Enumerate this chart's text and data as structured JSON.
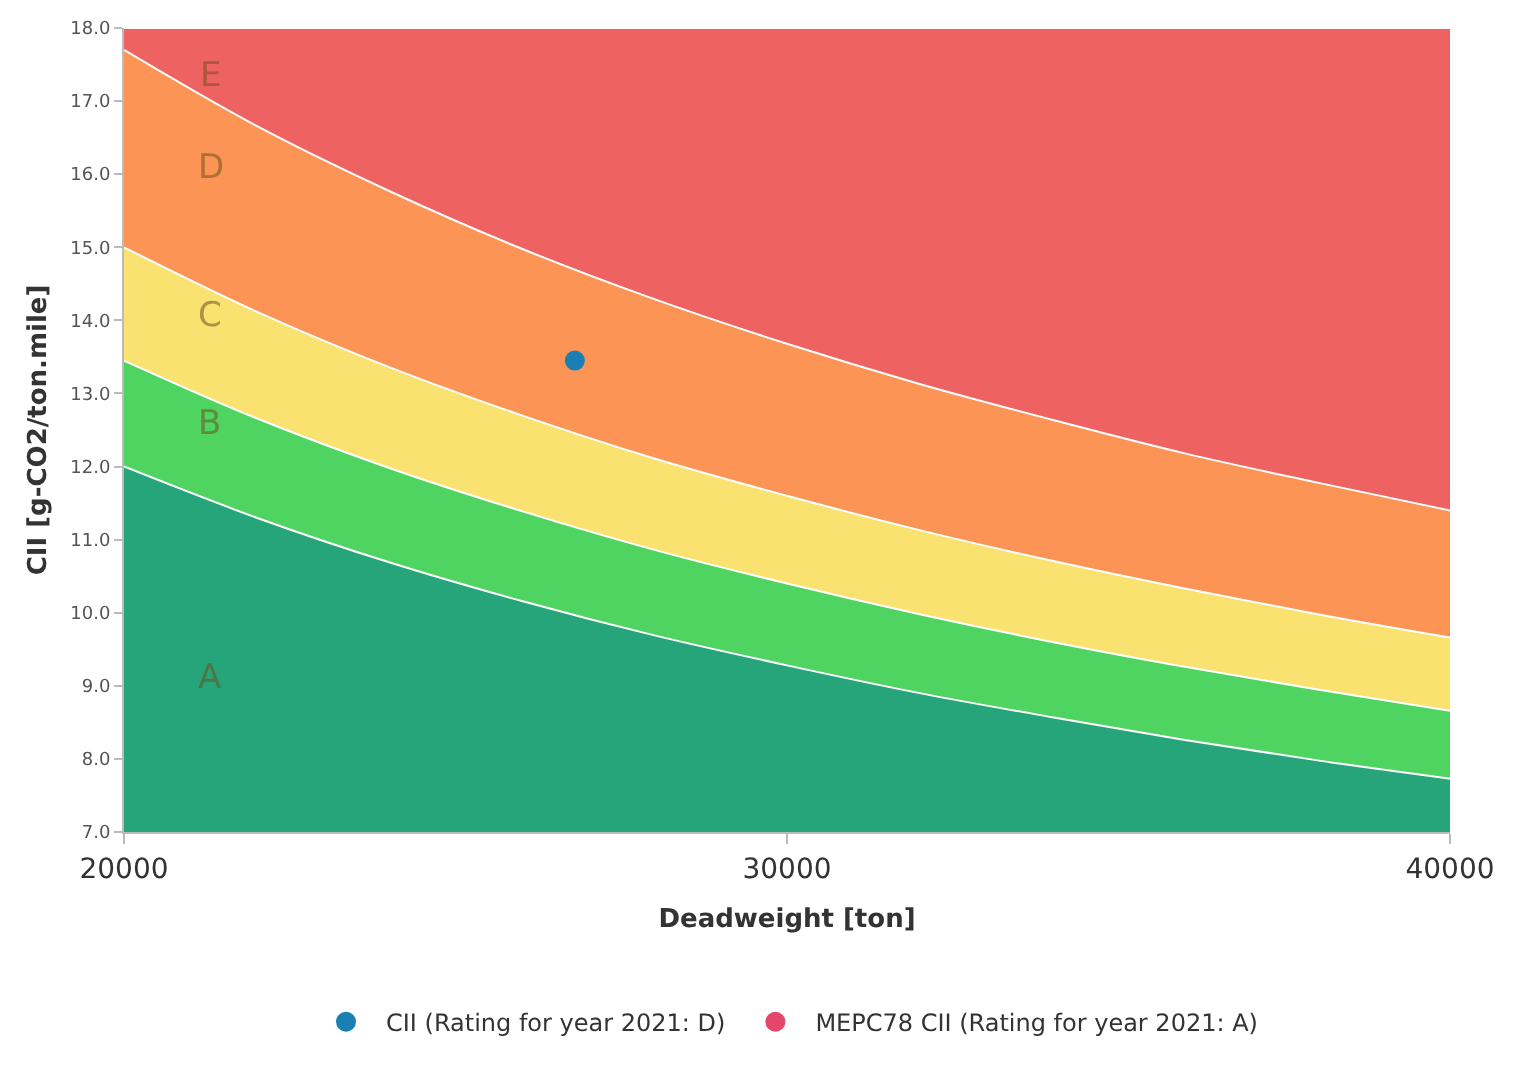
{
  "chart_data": {
    "type": "area",
    "xlabel": "Deadweight [ton]",
    "ylabel": "CII [g-CO2/ton.mile]",
    "x": [
      20000,
      22000,
      24000,
      26000,
      28000,
      30000,
      32000,
      34000,
      36000,
      38000,
      40000
    ],
    "series": [
      {
        "color": "#27a57a",
        "values": [
          12.0,
          11.3,
          10.69,
          10.16,
          9.69,
          9.28,
          8.9,
          8.57,
          8.26,
          7.98,
          7.73
        ]
      },
      {
        "color": "#4fd462",
        "values": [
          13.45,
          12.66,
          11.98,
          11.39,
          10.86,
          10.4,
          9.98,
          9.6,
          9.26,
          8.95,
          8.66
        ]
      },
      {
        "color": "#f9e270",
        "values": [
          15.0,
          14.12,
          13.36,
          12.7,
          12.11,
          11.6,
          11.13,
          10.71,
          10.33,
          9.98,
          9.66
        ]
      },
      {
        "color": "#fb9455",
        "values": [
          17.7,
          16.66,
          15.77,
          14.98,
          14.29,
          13.68,
          13.13,
          12.64,
          12.18,
          11.78,
          11.4
        ]
      },
      {
        "color": "#ef6262",
        "values": [
          18.0,
          18.0,
          18.0,
          18.0,
          18.0,
          18.0,
          18.0,
          18.0,
          18.0,
          18.0,
          18.0
        ]
      },
      {
        "type": "scatter",
        "name": "CII (Rating for year 2021: D)",
        "color": "#1a7fb5",
        "marker": "circle",
        "x": [
          26800
        ],
        "values": [
          13.45
        ]
      },
      {
        "type": "scatter",
        "name": "MEPC78 CII (Rating for year 2021: A)",
        "color": "#e5476a",
        "marker": "circle",
        "values": [
          null,
          null,
          null,
          null,
          null,
          null,
          null,
          null,
          null,
          null,
          null
        ]
      }
    ],
    "annotations": [
      "A",
      "B",
      "C",
      "D",
      "E"
    ],
    "xlim": [
      20000,
      40000
    ],
    "xticks": [
      20000,
      30000,
      40000
    ],
    "ylim": [
      7,
      18
    ],
    "yticks": [
      {
        "value": 7,
        "label": "7.0"
      },
      {
        "value": 8,
        "label": "8.0"
      },
      {
        "value": 9,
        "label": "9.0"
      },
      {
        "value": 10,
        "label": "10.0"
      },
      {
        "value": 11,
        "label": "11.0"
      },
      {
        "value": 12,
        "label": "12.0"
      },
      {
        "value": 13,
        "label": "13.0"
      },
      {
        "value": 14,
        "label": "14.0"
      },
      {
        "value": 15,
        "label": "15.0"
      },
      {
        "value": 16,
        "label": "16.0"
      },
      {
        "value": 17,
        "label": "17.0"
      },
      {
        "value": 18,
        "label": "18.0"
      }
    ],
    "legend": "bottom"
  }
}
